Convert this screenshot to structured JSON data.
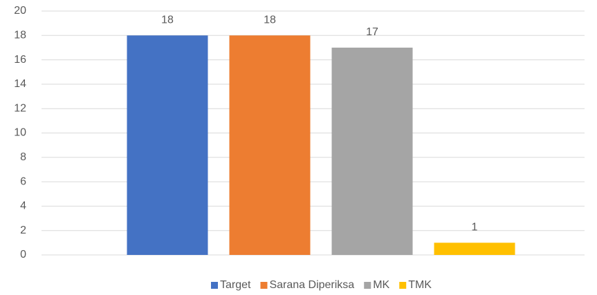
{
  "chart_data": {
    "type": "bar",
    "categories": [
      null
    ],
    "series": [
      {
        "name": "Target",
        "color": "#4472c4",
        "values": [
          18
        ]
      },
      {
        "name": "Sarana Diperiksa",
        "color": "#ed7d31",
        "values": [
          18
        ]
      },
      {
        "name": "MK",
        "color": "#a5a5a5",
        "values": [
          17
        ]
      },
      {
        "name": "TMK",
        "color": "#ffc000",
        "values": [
          1
        ]
      }
    ],
    "ylim": [
      0,
      20
    ],
    "yticks": [
      0,
      2,
      4,
      6,
      8,
      10,
      12,
      14,
      16,
      18,
      20
    ],
    "grid": true,
    "legend": "bottom",
    "data_labels": true
  }
}
